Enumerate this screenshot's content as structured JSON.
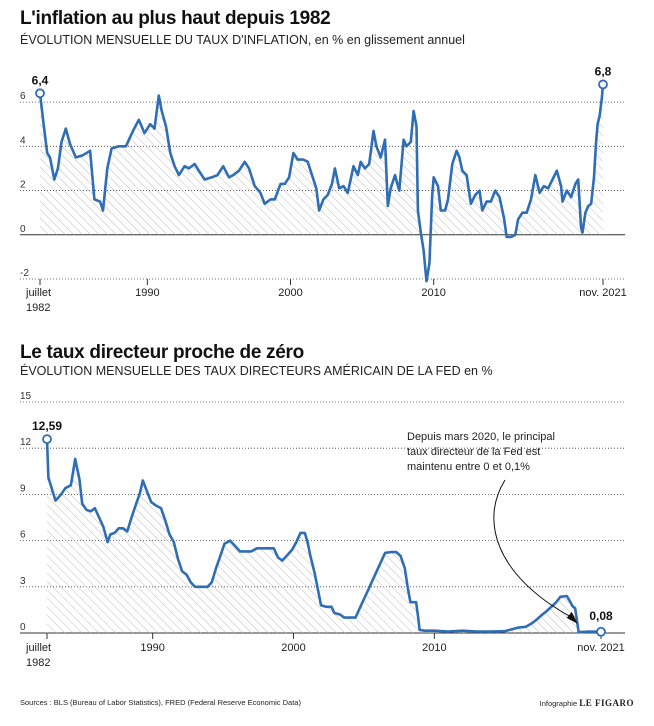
{
  "charts": [
    {
      "title": "L'inflation au plus haut depuis 1982",
      "subtitle": "ÉVOLUTION MENSUELLE DU TAUX D'INFLATION, en % en glissement annuel"
    },
    {
      "title": "Le taux directeur proche de zéro",
      "subtitle": "ÉVOLUTION MENSUELLE DES TAUX DIRECTEURS AMÉRICAIN DE LA FED en %"
    }
  ],
  "footer": {
    "sources": "Sources : BLS (Bureau of Labor Statistics), FRED (Federal Reserve Economic Data)",
    "credit_prefix": "Infographie",
    "credit_brand": "LE FIGARO"
  },
  "colors": {
    "line": "#2f6db5",
    "grid": "#444444",
    "hatch": "#bdbdbd"
  },
  "chart_data": [
    {
      "type": "line",
      "ylim": [
        -2,
        7
      ],
      "yticks": [
        "-2",
        "0",
        "2",
        "4",
        "6"
      ],
      "yticks_values": [
        -2,
        0,
        2,
        4,
        6
      ],
      "xticks": [
        {
          "label": [
            "juillet",
            "1982"
          ],
          "x": 1982.5
        },
        {
          "label": [
            "1990"
          ],
          "x": 1990
        },
        {
          "label": [
            "2000"
          ],
          "x": 2000
        },
        {
          "label": [
            "2010"
          ],
          "x": 2010
        },
        {
          "label": [
            "nov. 2021"
          ],
          "x": 2021.83
        }
      ],
      "xlim": [
        1982.5,
        2021.83
      ],
      "annotations": [
        {
          "text": "6,4",
          "x": 1982.5,
          "y": 6.4
        },
        {
          "text": "6,8",
          "x": 2021.83,
          "y": 6.8
        }
      ],
      "points": [
        [
          1982.5,
          6.4
        ],
        [
          1982.75,
          5.0
        ],
        [
          1983.0,
          3.7
        ],
        [
          1983.2,
          3.5
        ],
        [
          1983.5,
          2.5
        ],
        [
          1983.75,
          3.0
        ],
        [
          1984.0,
          4.2
        ],
        [
          1984.3,
          4.8
        ],
        [
          1984.6,
          4.1
        ],
        [
          1985.0,
          3.5
        ],
        [
          1985.5,
          3.6
        ],
        [
          1986.0,
          3.8
        ],
        [
          1986.3,
          1.6
        ],
        [
          1986.7,
          1.5
        ],
        [
          1986.9,
          1.1
        ],
        [
          1987.2,
          3.0
        ],
        [
          1987.5,
          3.9
        ],
        [
          1988.0,
          4.0
        ],
        [
          1988.5,
          4.0
        ],
        [
          1989.0,
          4.7
        ],
        [
          1989.4,
          5.2
        ],
        [
          1989.8,
          4.6
        ],
        [
          1990.2,
          5.0
        ],
        [
          1990.5,
          4.8
        ],
        [
          1990.8,
          6.3
        ],
        [
          1991.0,
          5.6
        ],
        [
          1991.3,
          4.9
        ],
        [
          1991.6,
          3.7
        ],
        [
          1991.9,
          3.1
        ],
        [
          1992.2,
          2.7
        ],
        [
          1992.6,
          3.1
        ],
        [
          1992.9,
          3.0
        ],
        [
          1993.3,
          3.2
        ],
        [
          1993.7,
          2.8
        ],
        [
          1994.0,
          2.5
        ],
        [
          1994.5,
          2.6
        ],
        [
          1994.9,
          2.7
        ],
        [
          1995.3,
          3.1
        ],
        [
          1995.7,
          2.6
        ],
        [
          1996.0,
          2.7
        ],
        [
          1996.4,
          2.9
        ],
        [
          1996.8,
          3.3
        ],
        [
          1997.1,
          3.0
        ],
        [
          1997.5,
          2.2
        ],
        [
          1997.9,
          1.9
        ],
        [
          1998.2,
          1.4
        ],
        [
          1998.6,
          1.6
        ],
        [
          1998.9,
          1.6
        ],
        [
          1999.3,
          2.3
        ],
        [
          1999.6,
          2.3
        ],
        [
          1999.9,
          2.6
        ],
        [
          2000.2,
          3.7
        ],
        [
          2000.5,
          3.4
        ],
        [
          2000.9,
          3.4
        ],
        [
          2001.2,
          3.3
        ],
        [
          2001.5,
          2.7
        ],
        [
          2001.8,
          2.1
        ],
        [
          2002.0,
          1.1
        ],
        [
          2002.3,
          1.6
        ],
        [
          2002.6,
          1.8
        ],
        [
          2002.9,
          2.3
        ],
        [
          2003.1,
          3.0
        ],
        [
          2003.4,
          2.1
        ],
        [
          2003.7,
          2.2
        ],
        [
          2004.0,
          1.9
        ],
        [
          2004.4,
          3.1
        ],
        [
          2004.7,
          2.7
        ],
        [
          2004.9,
          3.3
        ],
        [
          2005.2,
          3.0
        ],
        [
          2005.5,
          3.2
        ],
        [
          2005.8,
          4.7
        ],
        [
          2006.0,
          4.0
        ],
        [
          2006.3,
          3.5
        ],
        [
          2006.6,
          4.3
        ],
        [
          2006.8,
          1.3
        ],
        [
          2007.0,
          2.1
        ],
        [
          2007.3,
          2.7
        ],
        [
          2007.6,
          2.0
        ],
        [
          2007.9,
          4.3
        ],
        [
          2008.1,
          4.0
        ],
        [
          2008.4,
          4.2
        ],
        [
          2008.6,
          5.6
        ],
        [
          2008.8,
          4.9
        ],
        [
          2008.9,
          1.1
        ],
        [
          2009.1,
          0.1
        ],
        [
          2009.3,
          -0.7
        ],
        [
          2009.5,
          -2.1
        ],
        [
          2009.7,
          -1.3
        ],
        [
          2009.9,
          1.8
        ],
        [
          2010.0,
          2.6
        ],
        [
          2010.3,
          2.2
        ],
        [
          2010.5,
          1.1
        ],
        [
          2010.8,
          1.1
        ],
        [
          2011.0,
          1.6
        ],
        [
          2011.3,
          3.2
        ],
        [
          2011.6,
          3.8
        ],
        [
          2011.8,
          3.5
        ],
        [
          2012.0,
          2.9
        ],
        [
          2012.3,
          2.7
        ],
        [
          2012.6,
          1.4
        ],
        [
          2012.9,
          1.8
        ],
        [
          2013.2,
          2.0
        ],
        [
          2013.4,
          1.1
        ],
        [
          2013.7,
          1.5
        ],
        [
          2014.0,
          1.5
        ],
        [
          2014.3,
          2.0
        ],
        [
          2014.6,
          1.7
        ],
        [
          2014.9,
          0.8
        ],
        [
          2015.1,
          -0.1
        ],
        [
          2015.4,
          -0.1
        ],
        [
          2015.7,
          0.0
        ],
        [
          2015.9,
          0.7
        ],
        [
          2016.2,
          1.0
        ],
        [
          2016.5,
          1.0
        ],
        [
          2016.8,
          1.6
        ],
        [
          2017.1,
          2.7
        ],
        [
          2017.4,
          1.9
        ],
        [
          2017.7,
          2.2
        ],
        [
          2018.0,
          2.1
        ],
        [
          2018.3,
          2.5
        ],
        [
          2018.6,
          2.9
        ],
        [
          2018.9,
          2.2
        ],
        [
          2019.0,
          1.5
        ],
        [
          2019.3,
          2.0
        ],
        [
          2019.6,
          1.7
        ],
        [
          2019.9,
          2.3
        ],
        [
          2020.1,
          2.5
        ],
        [
          2020.3,
          0.3
        ],
        [
          2020.4,
          0.1
        ],
        [
          2020.6,
          1.0
        ],
        [
          2020.8,
          1.3
        ],
        [
          2021.0,
          1.4
        ],
        [
          2021.2,
          2.6
        ],
        [
          2021.35,
          4.2
        ],
        [
          2021.45,
          5.0
        ],
        [
          2021.6,
          5.4
        ],
        [
          2021.75,
          6.2
        ],
        [
          2021.83,
          6.8
        ]
      ]
    },
    {
      "type": "line",
      "ylim": [
        0,
        15
      ],
      "yticks": [
        "0",
        "3",
        "6",
        "9",
        "12",
        "15"
      ],
      "yticks_values": [
        0,
        3,
        6,
        9,
        12,
        15
      ],
      "xticks": [
        {
          "label": [
            "juillet",
            "1982"
          ],
          "x": 1982.5
        },
        {
          "label": [
            "1990"
          ],
          "x": 1990
        },
        {
          "label": [
            "2000"
          ],
          "x": 2000
        },
        {
          "label": [
            "2010"
          ],
          "x": 2010
        },
        {
          "label": [
            "nov. 2021"
          ],
          "x": 2021.83
        }
      ],
      "xlim": [
        1982.5,
        2021.83
      ],
      "annotations": [
        {
          "text": "12,59",
          "x": 1982.5,
          "y": 12.59
        },
        {
          "text": "0,08",
          "x": 2021.83,
          "y": 0.08
        }
      ],
      "note": "Depuis mars 2020, le principal taux directeur de la Fed est maintenu entre 0 et 0,1%",
      "points": [
        [
          1982.5,
          12.59
        ],
        [
          1982.6,
          10.1
        ],
        [
          1982.9,
          9.2
        ],
        [
          1983.1,
          8.6
        ],
        [
          1983.5,
          9.0
        ],
        [
          1983.8,
          9.4
        ],
        [
          1984.2,
          9.6
        ],
        [
          1984.5,
          11.3
        ],
        [
          1984.8,
          10.0
        ],
        [
          1985.0,
          8.4
        ],
        [
          1985.3,
          8.0
        ],
        [
          1985.6,
          7.9
        ],
        [
          1985.9,
          8.1
        ],
        [
          1986.2,
          7.5
        ],
        [
          1986.5,
          6.9
        ],
        [
          1986.8,
          5.9
        ],
        [
          1987.0,
          6.4
        ],
        [
          1987.3,
          6.5
        ],
        [
          1987.6,
          6.8
        ],
        [
          1987.9,
          6.8
        ],
        [
          1988.2,
          6.6
        ],
        [
          1988.5,
          7.5
        ],
        [
          1988.8,
          8.3
        ],
        [
          1989.1,
          9.1
        ],
        [
          1989.3,
          9.9
        ],
        [
          1989.6,
          9.2
        ],
        [
          1989.9,
          8.5
        ],
        [
          1990.2,
          8.3
        ],
        [
          1990.6,
          8.1
        ],
        [
          1990.9,
          7.3
        ],
        [
          1991.2,
          6.4
        ],
        [
          1991.5,
          5.9
        ],
        [
          1991.8,
          4.8
        ],
        [
          1992.1,
          4.0
        ],
        [
          1992.4,
          3.8
        ],
        [
          1992.7,
          3.3
        ],
        [
          1993.0,
          3.0
        ],
        [
          1993.5,
          3.0
        ],
        [
          1993.9,
          3.0
        ],
        [
          1994.2,
          3.3
        ],
        [
          1994.5,
          4.2
        ],
        [
          1994.8,
          5.0
        ],
        [
          1995.1,
          5.8
        ],
        [
          1995.5,
          6.0
        ],
        [
          1995.9,
          5.6
        ],
        [
          1996.2,
          5.3
        ],
        [
          1996.6,
          5.3
        ],
        [
          1997.0,
          5.3
        ],
        [
          1997.4,
          5.5
        ],
        [
          1997.8,
          5.5
        ],
        [
          1998.2,
          5.5
        ],
        [
          1998.6,
          5.5
        ],
        [
          1998.9,
          4.9
        ],
        [
          1999.2,
          4.7
        ],
        [
          1999.6,
          5.1
        ],
        [
          1999.9,
          5.4
        ],
        [
          2000.2,
          5.9
        ],
        [
          2000.5,
          6.5
        ],
        [
          2000.8,
          6.5
        ],
        [
          2001.0,
          5.9
        ],
        [
          2001.2,
          5.0
        ],
        [
          2001.5,
          3.9
        ],
        [
          2001.8,
          2.5
        ],
        [
          2001.95,
          1.8
        ],
        [
          2002.3,
          1.7
        ],
        [
          2002.7,
          1.7
        ],
        [
          2002.9,
          1.3
        ],
        [
          2003.3,
          1.2
        ],
        [
          2003.6,
          1.0
        ],
        [
          2004.0,
          1.0
        ],
        [
          2004.4,
          1.0
        ],
        [
          2004.6,
          1.4
        ],
        [
          2004.9,
          2.0
        ],
        [
          2005.2,
          2.6
        ],
        [
          2005.5,
          3.2
        ],
        [
          2005.9,
          4.0
        ],
        [
          2006.2,
          4.6
        ],
        [
          2006.5,
          5.2
        ],
        [
          2006.9,
          5.25
        ],
        [
          2007.3,
          5.25
        ],
        [
          2007.6,
          5.0
        ],
        [
          2007.9,
          4.2
        ],
        [
          2008.1,
          3.0
        ],
        [
          2008.3,
          2.0
        ],
        [
          2008.7,
          2.0
        ],
        [
          2008.85,
          1.0
        ],
        [
          2008.95,
          0.2
        ],
        [
          2009.3,
          0.15
        ],
        [
          2010.0,
          0.15
        ],
        [
          2011.0,
          0.1
        ],
        [
          2012.0,
          0.15
        ],
        [
          2013.0,
          0.1
        ],
        [
          2014.0,
          0.09
        ],
        [
          2015.0,
          0.12
        ],
        [
          2015.95,
          0.35
        ],
        [
          2016.5,
          0.4
        ],
        [
          2016.95,
          0.65
        ],
        [
          2017.3,
          0.9
        ],
        [
          2017.6,
          1.15
        ],
        [
          2017.95,
          1.4
        ],
        [
          2018.3,
          1.7
        ],
        [
          2018.6,
          1.95
        ],
        [
          2018.95,
          2.35
        ],
        [
          2019.4,
          2.4
        ],
        [
          2019.6,
          2.1
        ],
        [
          2019.8,
          1.75
        ],
        [
          2020.0,
          1.6
        ],
        [
          2020.15,
          0.65
        ],
        [
          2020.25,
          0.05
        ],
        [
          2021.0,
          0.09
        ],
        [
          2021.83,
          0.08
        ]
      ]
    }
  ]
}
